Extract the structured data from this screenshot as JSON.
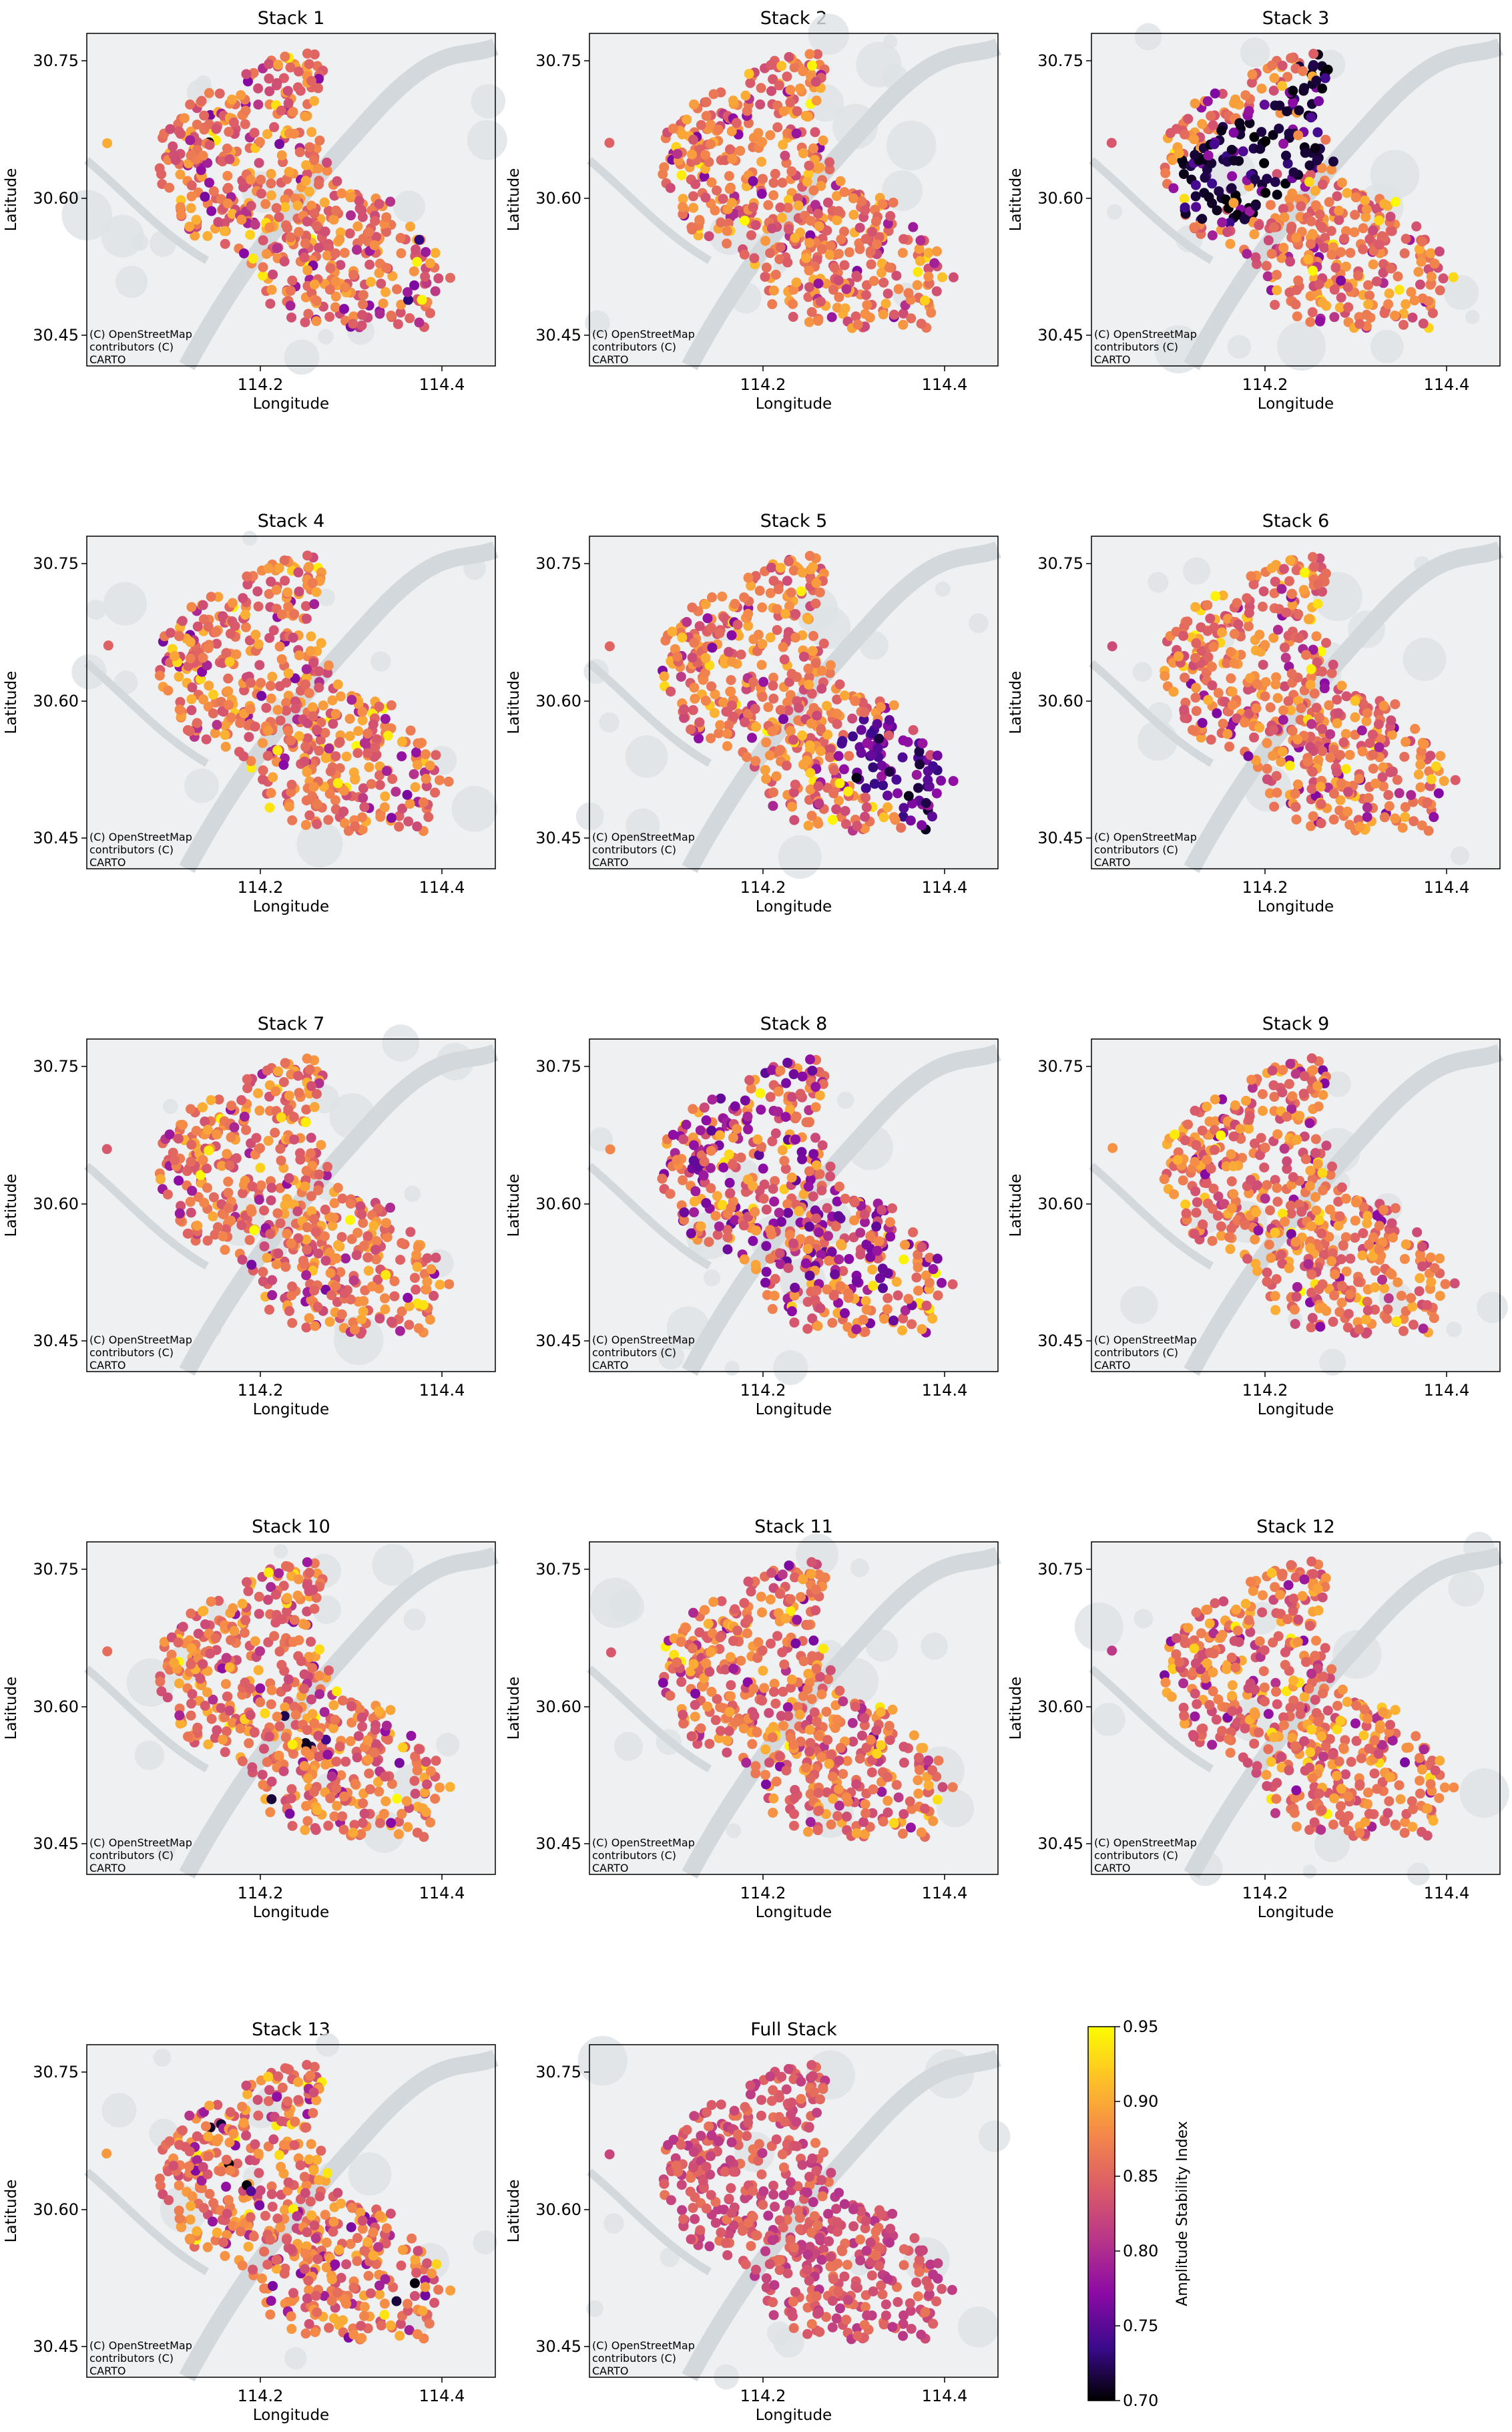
{
  "figure": {
    "x_axis_label": "Longitude",
    "y_axis_label": "Latitude",
    "x_ticks": [
      "114.2",
      "114.4"
    ],
    "y_ticks": [
      "30.75",
      "30.60",
      "30.45"
    ],
    "attribution": [
      "(C) OpenStreetMap",
      "contributors (C)",
      "CARTO"
    ],
    "colorbar": {
      "label": "Amplitude Stability Index",
      "ticks": [
        "0.95",
        "0.90",
        "0.85",
        "0.80",
        "0.75",
        "0.70"
      ],
      "min": 0.7,
      "max": 0.95,
      "colormap": [
        "#000000",
        "#3b0a8c",
        "#8b0aa5",
        "#b8358a",
        "#db5c68",
        "#f48849",
        "#fec029",
        "#fcfc00"
      ]
    }
  },
  "panels": [
    {
      "title": "Stack 1",
      "lowIndexArea": "scattered across map, black outliers near north-east and south-east edges"
    },
    {
      "title": "Stack 2",
      "lowIndexArea": "few scattered points"
    },
    {
      "title": "Stack 3",
      "lowIndexArea": "dense dark purple to black cluster in the north-west"
    },
    {
      "title": "Stack 4",
      "lowIndexArea": "few scattered points"
    },
    {
      "title": "Stack 5",
      "lowIndexArea": "dense purple cluster in the south-east"
    },
    {
      "title": "Stack 6",
      "lowIndexArea": "few scattered points"
    },
    {
      "title": "Stack 7",
      "lowIndexArea": "few scattered points"
    },
    {
      "title": "Stack 8",
      "lowIndexArea": "purple points spread across the map"
    },
    {
      "title": "Stack 9",
      "lowIndexArea": "few scattered points"
    },
    {
      "title": "Stack 10",
      "lowIndexArea": "black points near the river centre"
    },
    {
      "title": "Stack 11",
      "lowIndexArea": "few scattered points"
    },
    {
      "title": "Stack 12",
      "lowIndexArea": "few scattered points"
    },
    {
      "title": "Stack 13",
      "lowIndexArea": "black points in the west"
    },
    {
      "title": "Full Stack",
      "lowIndexArea": "uniformly magenta to red"
    }
  ]
}
